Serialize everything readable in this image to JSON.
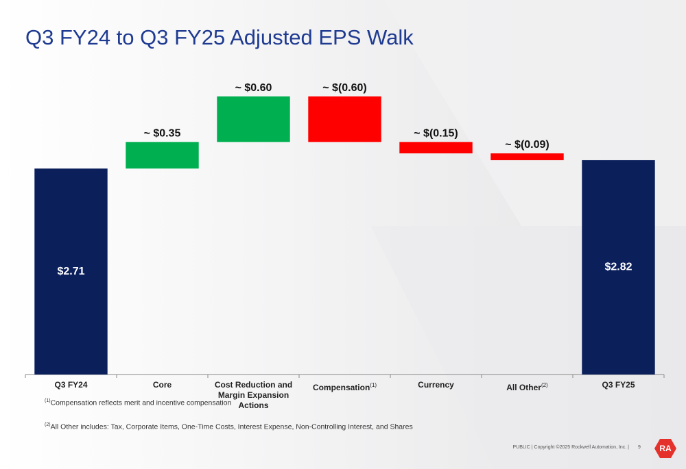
{
  "chart_data": {
    "type": "waterfall",
    "title": "Q3 FY24 to Q3 FY25 Adjusted EPS Walk",
    "categories": [
      "Q3 FY24",
      "Core",
      "Cost Reduction and Margin Expansion Actions",
      "Compensation",
      "Currency",
      "All Other",
      "Q3 FY25"
    ],
    "category_notes": [
      null,
      null,
      null,
      "(1)",
      null,
      "(2)",
      null
    ],
    "values": [
      2.71,
      0.35,
      0.6,
      -0.6,
      -0.15,
      -0.09,
      2.82
    ],
    "value_labels": [
      "$2.71",
      "~ $0.35",
      "~ $0.60",
      "~ $(0.60)",
      "~ $(0.15)",
      "~ $(0.09)",
      "$2.82"
    ],
    "colors": {
      "total": "#0b1f5b",
      "increase": "#00b050",
      "decrease": "#ff0000"
    }
  },
  "footnotes": [
    {
      "marker": "(1)",
      "text": "Compensation reflects merit and incentive compensation"
    },
    {
      "marker": "(2)",
      "text": "All Other includes: Tax, Corporate Items, One-Time Costs, Interest Expense, Non-Controlling Interest, and Shares"
    }
  ],
  "footer": {
    "text": "PUBLIC | Copyright ©2025 Rockwell Automation, Inc. |",
    "page": "9",
    "logo": "RA"
  }
}
